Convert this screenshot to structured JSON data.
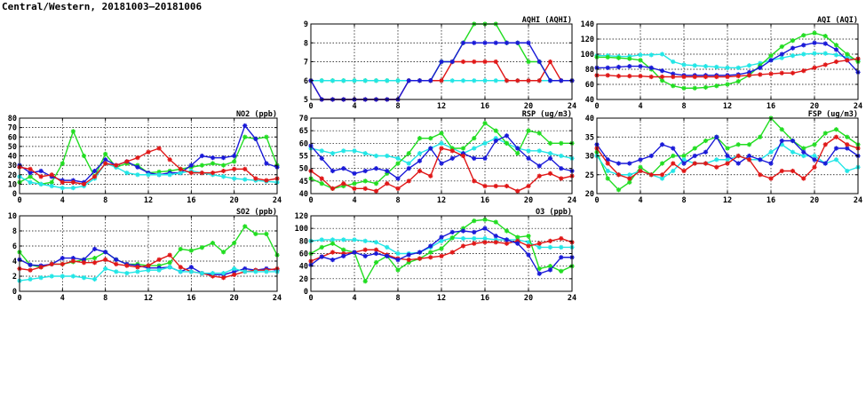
{
  "page_title": "Central/Western, 20181003–20181006",
  "colors": {
    "green": "#22dd22",
    "blue": "#1a1ad8",
    "red": "#e01818",
    "cyan": "#22e6e6"
  },
  "chart_data": [
    {
      "id": "aqhi",
      "type": "line",
      "title": "AQHI (AQHI)",
      "xlim": [
        0,
        24
      ],
      "ylim": [
        5,
        9
      ],
      "xticks": [
        0,
        4,
        8,
        12,
        16,
        20,
        24
      ],
      "yticks": [
        5,
        6,
        7,
        8,
        9
      ],
      "grid": true,
      "series": [
        {
          "color": "green",
          "values": [
            6,
            6,
            6,
            6,
            6,
            6,
            6,
            6,
            6,
            6,
            6,
            6,
            7,
            7,
            8,
            9,
            9,
            9,
            8,
            8,
            7,
            7,
            6,
            6,
            6
          ]
        },
        {
          "color": "cyan",
          "values": [
            6,
            6,
            6,
            6,
            6,
            6,
            6,
            6,
            6,
            6,
            6,
            6,
            6,
            6,
            6,
            6,
            6,
            6,
            6,
            6,
            6,
            6,
            6,
            6,
            6
          ]
        },
        {
          "color": "red",
          "values": [
            6,
            5,
            5,
            5,
            5,
            5,
            5,
            5,
            5,
            6,
            6,
            6,
            6,
            7,
            7,
            7,
            7,
            7,
            6,
            6,
            6,
            6,
            7,
            6,
            6
          ]
        },
        {
          "color": "blue",
          "values": [
            6,
            5,
            5,
            5,
            5,
            5,
            5,
            5,
            5,
            6,
            6,
            6,
            7,
            7,
            8,
            8,
            8,
            8,
            8,
            8,
            8,
            7,
            6,
            6,
            6
          ]
        }
      ]
    },
    {
      "id": "aqi",
      "type": "line",
      "title": "AQI (AQI)",
      "xlim": [
        0,
        24
      ],
      "ylim": [
        40,
        140
      ],
      "xticks": [
        0,
        4,
        8,
        12,
        16,
        20,
        24
      ],
      "yticks": [
        40,
        60,
        80,
        100,
        120,
        140
      ],
      "grid": true,
      "series": [
        {
          "color": "cyan",
          "values": [
            98,
            98,
            97,
            97,
            99,
            99,
            100,
            90,
            86,
            85,
            84,
            83,
            82,
            82,
            85,
            88,
            92,
            95,
            98,
            100,
            101,
            101,
            99,
            96,
            92
          ]
        },
        {
          "color": "green",
          "values": [
            96,
            96,
            95,
            94,
            92,
            80,
            65,
            58,
            55,
            55,
            56,
            58,
            60,
            64,
            72,
            85,
            98,
            110,
            118,
            125,
            128,
            124,
            112,
            100,
            90
          ]
        },
        {
          "color": "blue",
          "values": [
            82,
            82,
            83,
            84,
            84,
            82,
            78,
            74,
            72,
            72,
            72,
            72,
            72,
            73,
            76,
            82,
            92,
            100,
            108,
            112,
            115,
            114,
            106,
            92,
            76
          ]
        },
        {
          "color": "red",
          "values": [
            72,
            72,
            71,
            71,
            71,
            70,
            70,
            70,
            70,
            70,
            70,
            70,
            70,
            71,
            72,
            73,
            74,
            75,
            75,
            78,
            82,
            86,
            90,
            92,
            94
          ]
        }
      ]
    },
    {
      "id": "no2",
      "type": "line",
      "title": "NO2 (ppb)",
      "xlim": [
        0,
        24
      ],
      "ylim": [
        0,
        80
      ],
      "xticks": [
        0,
        4,
        8,
        12,
        16,
        20,
        24
      ],
      "yticks": [
        0,
        10,
        20,
        30,
        40,
        50,
        60,
        70,
        80
      ],
      "grid": true,
      "series": [
        {
          "color": "green",
          "values": [
            12,
            18,
            10,
            12,
            32,
            66,
            40,
            18,
            42,
            28,
            32,
            30,
            22,
            23,
            24,
            26,
            28,
            30,
            32,
            30,
            34,
            60,
            58,
            60,
            30
          ]
        },
        {
          "color": "blue",
          "values": [
            30,
            22,
            24,
            18,
            14,
            14,
            12,
            24,
            36,
            30,
            34,
            28,
            22,
            20,
            22,
            22,
            30,
            40,
            38,
            38,
            40,
            72,
            58,
            32,
            28
          ]
        },
        {
          "color": "cyan",
          "values": [
            18,
            12,
            10,
            8,
            6,
            6,
            8,
            16,
            32,
            28,
            22,
            20,
            20,
            20,
            20,
            22,
            24,
            22,
            20,
            18,
            16,
            15,
            14,
            13,
            12
          ]
        },
        {
          "color": "red",
          "values": [
            28,
            26,
            18,
            20,
            12,
            12,
            10,
            18,
            32,
            30,
            34,
            38,
            44,
            48,
            36,
            26,
            22,
            22,
            22,
            24,
            26,
            26,
            16,
            14,
            16
          ]
        }
      ]
    },
    {
      "id": "rsp",
      "type": "line",
      "title": "RSP (ug/m3)",
      "xlim": [
        0,
        24
      ],
      "ylim": [
        40,
        70
      ],
      "xticks": [
        0,
        4,
        8,
        12,
        16,
        20,
        24
      ],
      "yticks": [
        40,
        45,
        50,
        55,
        60,
        65,
        70
      ],
      "grid": true,
      "series": [
        {
          "color": "cyan",
          "values": [
            58,
            57,
            56,
            57,
            57,
            56,
            55,
            55,
            54,
            52,
            56,
            58,
            60,
            58,
            56,
            58,
            60,
            62,
            60,
            58,
            57,
            57,
            56,
            55,
            54
          ]
        },
        {
          "color": "green",
          "values": [
            46,
            44,
            42,
            43,
            44,
            45,
            44,
            48,
            52,
            56,
            62,
            62,
            64,
            58,
            58,
            62,
            68,
            65,
            60,
            56,
            65,
            64,
            60,
            60,
            60
          ]
        },
        {
          "color": "blue",
          "values": [
            59,
            54,
            49,
            50,
            48,
            49,
            50,
            49,
            46,
            50,
            53,
            58,
            52,
            54,
            56,
            54,
            54,
            61,
            63,
            58,
            54,
            51,
            54,
            50,
            49
          ]
        },
        {
          "color": "red",
          "values": [
            49,
            46,
            42,
            44,
            42,
            42,
            41,
            44,
            42,
            45,
            49,
            47,
            58,
            57,
            55,
            45,
            43,
            43,
            43,
            41,
            43,
            47,
            48,
            46,
            47
          ]
        }
      ]
    },
    {
      "id": "fsp",
      "type": "line",
      "title": "FSP (ug/m3)",
      "xlim": [
        0,
        24
      ],
      "ylim": [
        20,
        40
      ],
      "xticks": [
        0,
        4,
        8,
        12,
        16,
        20,
        24
      ],
      "yticks": [
        20,
        25,
        30,
        35,
        40
      ],
      "grid": true,
      "series": [
        {
          "color": "green",
          "values": [
            31,
            24,
            21,
            23,
            27,
            25,
            28,
            30,
            30,
            32,
            34,
            35,
            32,
            33,
            33,
            35,
            40,
            37,
            34,
            32,
            33,
            36,
            37,
            35,
            33
          ]
        },
        {
          "color": "cyan",
          "values": [
            30,
            26,
            25,
            25,
            26,
            25,
            24,
            26,
            29,
            28,
            28,
            29,
            29,
            30,
            29,
            29,
            31,
            33,
            31,
            30,
            30,
            28,
            29,
            26,
            27
          ]
        },
        {
          "color": "blue",
          "values": [
            33,
            29,
            28,
            28,
            29,
            30,
            33,
            32,
            28,
            30,
            31,
            35,
            30,
            28,
            30,
            29,
            28,
            34,
            34,
            31,
            29,
            28,
            32,
            32,
            30
          ]
        },
        {
          "color": "red",
          "values": [
            32,
            28,
            25,
            24,
            26,
            25,
            25,
            28,
            26,
            28,
            28,
            27,
            28,
            30,
            29,
            25,
            24,
            26,
            26,
            24,
            27,
            33,
            35,
            33,
            32
          ]
        }
      ]
    },
    {
      "id": "so2",
      "type": "line",
      "title": "SO2 (ppb)",
      "xlim": [
        0,
        24
      ],
      "ylim": [
        0,
        10
      ],
      "xticks": [
        0,
        4,
        8,
        12,
        16,
        20,
        24
      ],
      "yticks": [
        0,
        2,
        4,
        6,
        8,
        10
      ],
      "grid": true,
      "series": [
        {
          "color": "green",
          "values": [
            5.2,
            3.5,
            3.2,
            3.6,
            3.6,
            3.9,
            4.2,
            4.4,
            5.2,
            4.2,
            3.6,
            3.6,
            3.4,
            3.4,
            3.8,
            5.6,
            5.4,
            5.8,
            6.4,
            5.2,
            6.4,
            8.6,
            7.6,
            7.6,
            4.8
          ]
        },
        {
          "color": "blue",
          "values": [
            4.2,
            3.5,
            3.4,
            3.6,
            4.4,
            4.4,
            4.2,
            5.6,
            5.2,
            4.2,
            3.6,
            3.4,
            3.1,
            3.1,
            3.2,
            2.6,
            3.2,
            2.4,
            2.2,
            2.2,
            2.6,
            3.0,
            2.8,
            3.0,
            2.8
          ]
        },
        {
          "color": "red",
          "values": [
            3.0,
            2.8,
            3.2,
            3.6,
            3.6,
            4.0,
            3.8,
            3.8,
            4.2,
            3.6,
            3.4,
            3.2,
            3.4,
            4.2,
            4.8,
            3.2,
            2.6,
            2.4,
            2.0,
            1.8,
            2.2,
            2.6,
            2.8,
            2.8,
            3.0
          ]
        },
        {
          "color": "cyan",
          "values": [
            1.4,
            1.6,
            1.8,
            2.0,
            2.0,
            2.0,
            1.8,
            1.6,
            3.0,
            2.6,
            2.4,
            2.6,
            2.8,
            2.8,
            3.2,
            2.6,
            2.6,
            2.4,
            2.4,
            2.4,
            3.0,
            2.6,
            2.6,
            2.6,
            2.6
          ]
        }
      ]
    },
    {
      "id": "o3",
      "type": "line",
      "title": "O3 (ppb)",
      "xlim": [
        0,
        24
      ],
      "ylim": [
        0,
        120
      ],
      "xticks": [
        0,
        4,
        8,
        12,
        16,
        20,
        24
      ],
      "yticks": [
        0,
        20,
        40,
        60,
        80,
        100,
        120
      ],
      "grid": true,
      "series": [
        {
          "color": "cyan",
          "values": [
            80,
            82,
            82,
            82,
            82,
            80,
            78,
            70,
            60,
            60,
            62,
            70,
            80,
            85,
            84,
            84,
            84,
            82,
            82,
            82,
            78,
            70,
            70,
            70,
            70
          ]
        },
        {
          "color": "green",
          "values": [
            60,
            70,
            76,
            66,
            62,
            16,
            46,
            56,
            34,
            46,
            52,
            62,
            68,
            85,
            100,
            112,
            114,
            110,
            96,
            86,
            88,
            36,
            40,
            32,
            40
          ]
        },
        {
          "color": "red",
          "values": [
            48,
            55,
            62,
            60,
            62,
            66,
            66,
            58,
            52,
            50,
            52,
            54,
            56,
            62,
            72,
            76,
            78,
            78,
            76,
            80,
            72,
            76,
            80,
            84,
            78
          ]
        },
        {
          "color": "blue",
          "values": [
            42,
            55,
            50,
            56,
            62,
            56,
            60,
            56,
            50,
            58,
            62,
            72,
            86,
            94,
            96,
            94,
            100,
            88,
            82,
            76,
            58,
            28,
            34,
            54,
            54
          ]
        }
      ]
    }
  ]
}
